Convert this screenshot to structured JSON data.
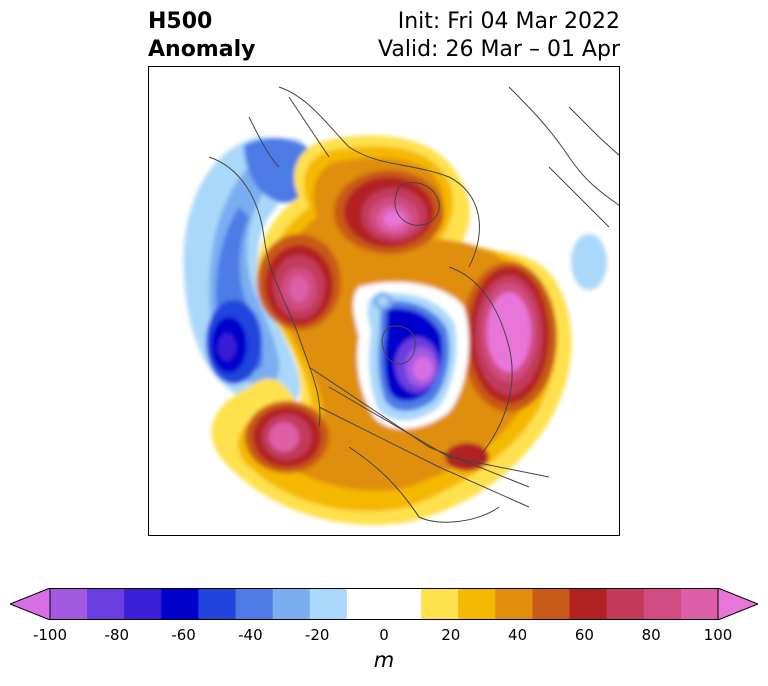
{
  "title": {
    "left_line1": "H500",
    "left_line2": "Anomaly",
    "right_line1": "Init: Fri 04 Mar 2022",
    "right_line2": "Valid: 26 Mar – 01 Apr"
  },
  "colorbar": {
    "unit": "m",
    "ticks": [
      "-100",
      "-80",
      "-60",
      "-40",
      "-20",
      "0",
      "20",
      "40",
      "60",
      "80",
      "100"
    ],
    "colors": [
      "#d86ee6",
      "#a15ae0",
      "#6a3ee0",
      "#3a1fd6",
      "#0000cc",
      "#2244dd",
      "#4e7be6",
      "#7aaef0",
      "#aad8fa",
      "#ffffff",
      "#ffffff",
      "#ffe14d",
      "#f5b800",
      "#e08e0b",
      "#c85a18",
      "#b22222",
      "#c23a5a",
      "#d04b80",
      "#dc5fa8",
      "#e876d8"
    ]
  }
}
